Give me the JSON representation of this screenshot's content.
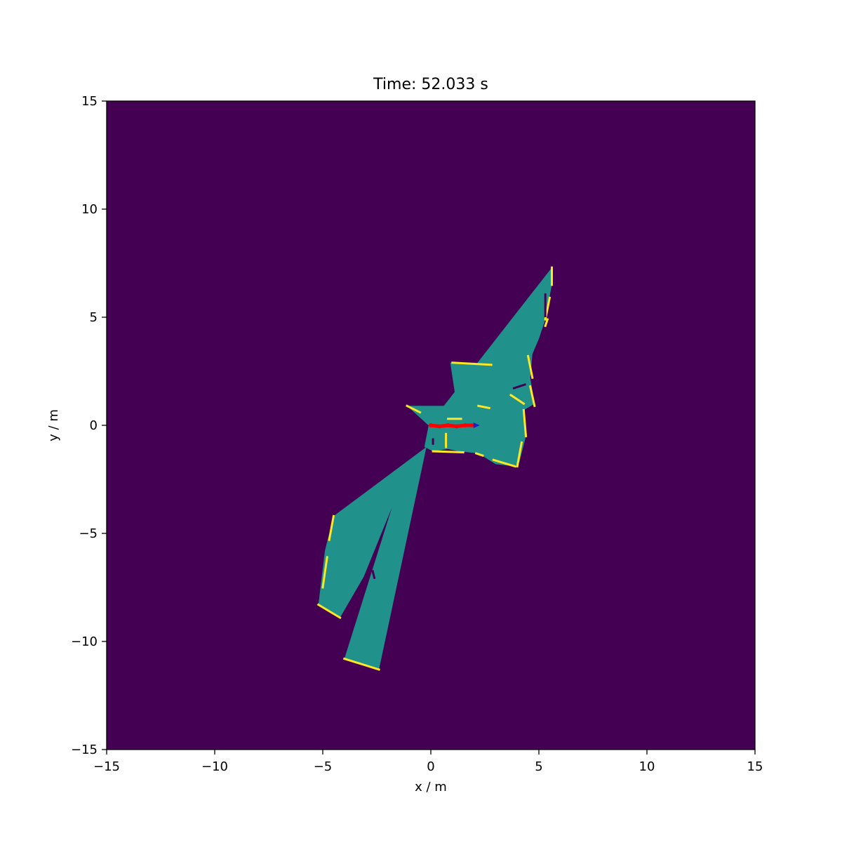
{
  "chart_data": {
    "type": "heatmap",
    "title": "Time: 52.033 s",
    "xlabel": "x / m",
    "ylabel": "y / m",
    "xlim": [
      -15,
      15
    ],
    "ylim": [
      -15,
      15
    ],
    "xticks": [
      -15,
      -10,
      -5,
      0,
      5,
      10,
      15
    ],
    "yticks": [
      -15,
      -10,
      -5,
      0,
      5,
      10,
      15
    ],
    "xtick_labels": [
      "−15",
      "−10",
      "−5",
      "0",
      "5",
      "10",
      "15"
    ],
    "ytick_labels": [
      "−15",
      "−10",
      "−5",
      "0",
      "5",
      "10",
      "15"
    ],
    "grid": false,
    "colormap": "viridis",
    "colors": {
      "unknown": "#440154",
      "free": "#21918c",
      "occupied": "#fde725",
      "trajectory": "#ff0000",
      "robot_marker": "#1f1fcc"
    },
    "free_regions": [
      [
        [
          -0.1,
          0.0
        ],
        [
          5.6,
          7.3
        ],
        [
          5.6,
          6.5
        ],
        [
          5.3,
          4.9
        ],
        [
          5.0,
          4.0
        ],
        [
          4.7,
          3.3
        ],
        [
          4.6,
          2.2
        ],
        [
          4.8,
          1.0
        ],
        [
          4.3,
          0.7
        ],
        [
          4.4,
          -0.5
        ],
        [
          4.1,
          -1.7
        ],
        [
          3.9,
          -1.9
        ],
        [
          3.0,
          -1.8
        ],
        [
          2.2,
          -1.3
        ],
        [
          1.3,
          -1.2
        ],
        [
          0.8,
          -1.1
        ],
        [
          0.1,
          -1.2
        ],
        [
          -0.3,
          -1.0
        ],
        [
          -0.1,
          0.0
        ]
      ],
      [
        [
          0.9,
          2.9
        ],
        [
          2.8,
          2.8
        ],
        [
          2.4,
          1.8
        ],
        [
          1.8,
          1.1
        ],
        [
          1.6,
          0.9
        ],
        [
          1.2,
          0.9
        ],
        [
          0.9,
          2.9
        ]
      ],
      [
        [
          -1.1,
          0.9
        ],
        [
          1.5,
          0.9
        ],
        [
          1.6,
          0.0
        ],
        [
          0.9,
          -0.2
        ],
        [
          0.0,
          -0.1
        ],
        [
          -1.1,
          0.9
        ]
      ],
      [
        [
          -0.2,
          -1.0
        ],
        [
          -4.5,
          -4.2
        ],
        [
          -4.9,
          -5.8
        ],
        [
          -5.2,
          -8.3
        ],
        [
          -4.2,
          -8.9
        ],
        [
          -3.1,
          -7.0
        ],
        [
          -1.8,
          -3.8
        ],
        [
          -4.0,
          -10.8
        ],
        [
          -2.4,
          -11.3
        ],
        [
          -0.2,
          -1.0
        ]
      ]
    ],
    "occupied_segments": [
      [
        [
          5.6,
          7.3
        ],
        [
          5.6,
          6.5
        ]
      ],
      [
        [
          5.5,
          5.9
        ],
        [
          5.3,
          4.9
        ]
      ],
      [
        [
          5.4,
          4.9
        ],
        [
          5.3,
          4.6
        ]
      ],
      [
        [
          4.5,
          3.2
        ],
        [
          4.7,
          2.2
        ]
      ],
      [
        [
          4.6,
          1.8
        ],
        [
          4.8,
          0.9
        ]
      ],
      [
        [
          4.3,
          0.7
        ],
        [
          4.4,
          -0.5
        ]
      ],
      [
        [
          4.2,
          -0.8
        ],
        [
          4.0,
          -1.9
        ]
      ],
      [
        [
          2.9,
          -1.6
        ],
        [
          3.9,
          -1.9
        ]
      ],
      [
        [
          2.1,
          -1.3
        ],
        [
          2.4,
          -1.4
        ]
      ],
      [
        [
          0.1,
          -1.2
        ],
        [
          1.5,
          -1.25
        ]
      ],
      [
        [
          1.0,
          2.9
        ],
        [
          2.8,
          2.8
        ]
      ],
      [
        [
          2.2,
          0.9
        ],
        [
          2.7,
          0.8
        ]
      ],
      [
        [
          3.7,
          1.4
        ],
        [
          4.3,
          1.0
        ]
      ],
      [
        [
          -1.1,
          0.9
        ],
        [
          -0.5,
          0.6
        ]
      ],
      [
        [
          0.8,
          0.3
        ],
        [
          1.4,
          0.3
        ]
      ],
      [
        [
          -4.5,
          -4.2
        ],
        [
          -4.7,
          -5.3
        ]
      ],
      [
        [
          -4.8,
          -6.1
        ],
        [
          -5.0,
          -7.5
        ]
      ],
      [
        [
          -5.2,
          -8.3
        ],
        [
          -4.2,
          -8.9
        ]
      ],
      [
        [
          -4.0,
          -10.8
        ],
        [
          -2.4,
          -11.3
        ]
      ],
      [
        [
          0.7,
          -0.4
        ],
        [
          0.7,
          -1.0
        ]
      ]
    ],
    "obstacle_marks": [
      [
        [
          5.3,
          6.1
        ],
        [
          5.3,
          5.0
        ]
      ],
      [
        [
          3.8,
          1.7
        ],
        [
          4.4,
          1.9
        ]
      ],
      [
        [
          0.1,
          -0.6
        ],
        [
          0.1,
          -0.9
        ]
      ],
      [
        [
          -2.7,
          -6.7
        ],
        [
          -2.6,
          -7.1
        ]
      ]
    ],
    "trajectory": {
      "x": [
        0.0,
        0.4,
        0.8,
        1.2,
        1.6,
        2.0
      ],
      "y": [
        0.0,
        -0.05,
        0.0,
        -0.05,
        0.0,
        0.0
      ]
    },
    "robot_position": [
      2.2,
      0.0
    ]
  }
}
